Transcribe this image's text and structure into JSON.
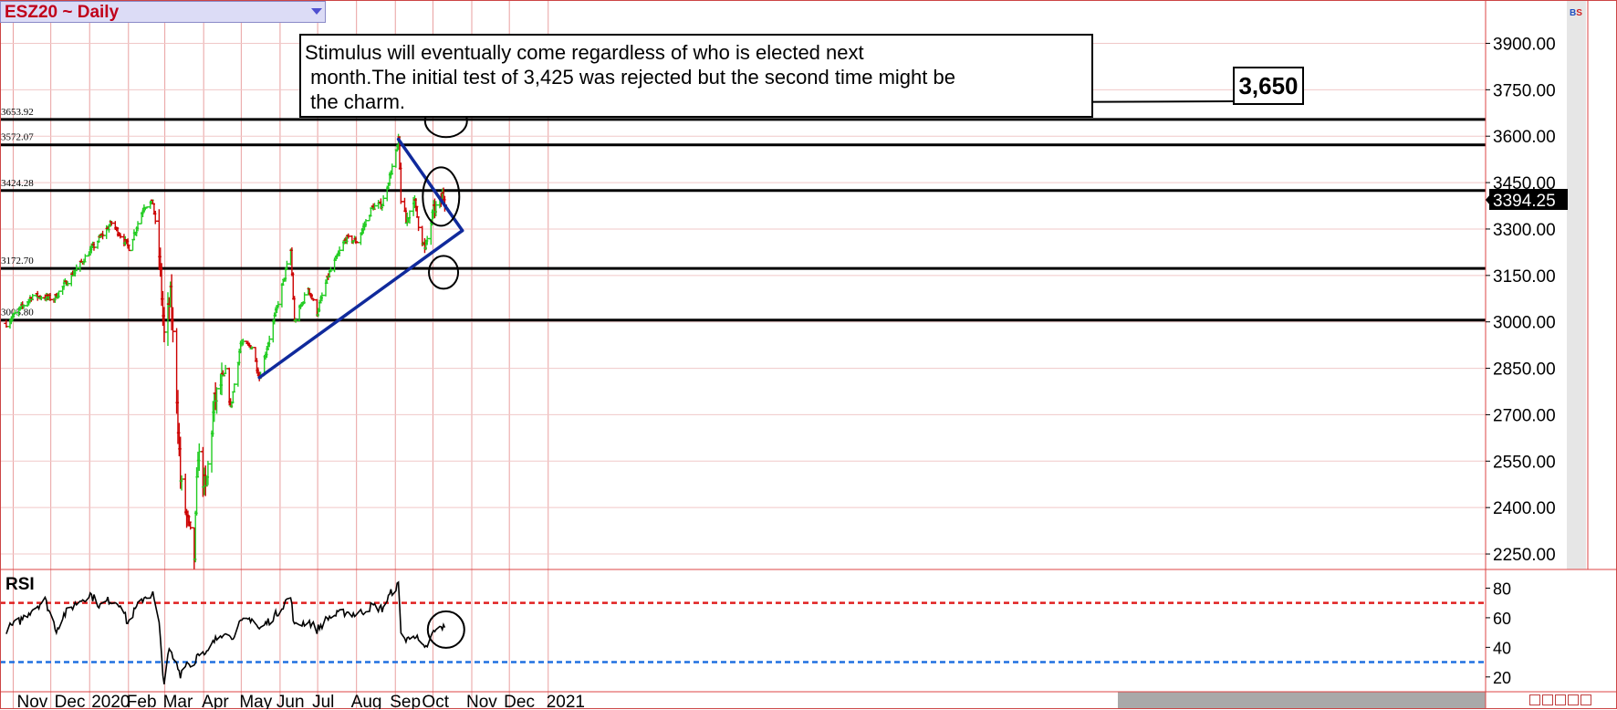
{
  "header": {
    "title": "ESZ20 ~ Daily",
    "price_box": "3394.25"
  },
  "annotations": {
    "note": "Stimulus will eventually come regardless of who is elected next\n month.The initial test of 3,425 was rejected but the second time might be\n the charm.",
    "target": "3,650"
  },
  "rsi_label": "RSI",
  "colors": {
    "up": "#22cc22",
    "down": "#cc0000",
    "trend": "#102a9c",
    "rsi_high": "#e02020",
    "rsi_low": "#2070e0"
  },
  "chart_data": [
    {
      "type": "bar",
      "subtype": "ohlc",
      "x_tick_labels": [
        "Nov",
        "Dec",
        "2020",
        "Feb",
        "Mar",
        "Apr",
        "May",
        "Jun",
        "Jul",
        "Aug",
        "Sep",
        "Oct",
        "Nov",
        "Dec",
        "2021"
      ],
      "y_tick_labels": [
        "3900.00",
        "3750.00",
        "3600.00",
        "3450.00",
        "3300.00",
        "3150.00",
        "3000.00",
        "2850.00",
        "2700.00",
        "2550.00",
        "2400.00",
        "2250.00"
      ],
      "ylim": [
        2200,
        4040
      ],
      "last_price": 3394.25,
      "horizontal_levels": [
        {
          "label": "3653.92",
          "value": 3653.92
        },
        {
          "label": "3572.07",
          "value": 3572.07
        },
        {
          "label": "3424.28",
          "value": 3424.28
        },
        {
          "label": "3172.70",
          "value": 3172.7
        },
        {
          "label": "3005.80",
          "value": 3005.8
        }
      ],
      "trend_lines": [
        {
          "from": [
            "2020-05-14",
            2820
          ],
          "to": [
            "2020-10-23",
            3295
          ]
        },
        {
          "from": [
            "2020-09-02",
            3590
          ],
          "to": [
            "2020-10-23",
            3295
          ]
        }
      ],
      "markers": [
        {
          "at": [
            "2020-10-10",
            3650
          ]
        },
        {
          "at": [
            "2020-10-06",
            3405
          ]
        },
        {
          "at": [
            "2020-10-08",
            3160
          ]
        }
      ],
      "path": [
        [
          "2019-10-25",
          2995
        ],
        [
          "2019-11-15",
          3085
        ],
        [
          "2019-12-02",
          3075
        ],
        [
          "2019-12-31",
          3230
        ],
        [
          "2020-01-17",
          3320
        ],
        [
          "2020-01-31",
          3240
        ],
        [
          "2020-02-12",
          3375
        ],
        [
          "2020-02-19",
          3385
        ],
        [
          "2020-02-24",
          3215
        ],
        [
          "2020-02-28",
          2955
        ],
        [
          "2020-03-04",
          3080
        ],
        [
          "2020-03-09",
          2760
        ],
        [
          "2020-03-12",
          2490
        ],
        [
          "2020-03-16",
          2390
        ],
        [
          "2020-03-23",
          2240
        ],
        [
          "2020-03-26",
          2580
        ],
        [
          "2020-04-01",
          2450
        ],
        [
          "2020-04-08",
          2740
        ],
        [
          "2020-04-17",
          2840
        ],
        [
          "2020-04-21",
          2720
        ],
        [
          "2020-04-29",
          2930
        ],
        [
          "2020-05-08",
          2920
        ],
        [
          "2020-05-14",
          2820
        ],
        [
          "2020-05-27",
          3030
        ],
        [
          "2020-06-08",
          3230
        ],
        [
          "2020-06-11",
          3000
        ],
        [
          "2020-06-22",
          3110
        ],
        [
          "2020-06-29",
          3030
        ],
        [
          "2020-07-08",
          3150
        ],
        [
          "2020-07-22",
          3270
        ],
        [
          "2020-07-31",
          3260
        ],
        [
          "2020-08-12",
          3370
        ],
        [
          "2020-08-20",
          3380
        ],
        [
          "2020-08-28",
          3500
        ],
        [
          "2020-09-02",
          3580
        ],
        [
          "2020-09-04",
          3400
        ],
        [
          "2020-09-08",
          3320
        ],
        [
          "2020-09-14",
          3400
        ],
        [
          "2020-09-18",
          3320
        ],
        [
          "2020-09-23",
          3230
        ],
        [
          "2020-09-30",
          3360
        ],
        [
          "2020-10-06",
          3390
        ],
        [
          "2020-10-07",
          3410
        ],
        [
          "2020-10-09",
          3394
        ]
      ]
    },
    {
      "type": "line",
      "name": "RSI",
      "y_tick_labels": [
        "80",
        "60",
        "40",
        "20"
      ],
      "ylim": [
        10,
        92
      ],
      "overbought": 70,
      "oversold": 30,
      "marker": {
        "at": [
          "2020-10-10",
          52
        ]
      },
      "path": [
        [
          "2019-10-25",
          52
        ],
        [
          "2019-11-05",
          58
        ],
        [
          "2019-11-15",
          66
        ],
        [
          "2019-11-25",
          72
        ],
        [
          "2019-12-04",
          52
        ],
        [
          "2019-12-10",
          62
        ],
        [
          "2019-12-20",
          70
        ],
        [
          "2019-12-31",
          76
        ],
        [
          "2020-01-08",
          68
        ],
        [
          "2020-01-15",
          72
        ],
        [
          "2020-01-24",
          70
        ],
        [
          "2020-01-30",
          56
        ],
        [
          "2020-02-04",
          64
        ],
        [
          "2020-02-12",
          74
        ],
        [
          "2020-02-19",
          76
        ],
        [
          "2020-02-24",
          55
        ],
        [
          "2020-02-27",
          24
        ],
        [
          "2020-02-28",
          16
        ],
        [
          "2020-03-03",
          38
        ],
        [
          "2020-03-09",
          28
        ],
        [
          "2020-03-12",
          22
        ],
        [
          "2020-03-16",
          30
        ],
        [
          "2020-03-23",
          28
        ],
        [
          "2020-03-26",
          38
        ],
        [
          "2020-04-01",
          34
        ],
        [
          "2020-04-08",
          44
        ],
        [
          "2020-04-17",
          52
        ],
        [
          "2020-04-21",
          46
        ],
        [
          "2020-04-29",
          56
        ],
        [
          "2020-05-08",
          60
        ],
        [
          "2020-05-14",
          52
        ],
        [
          "2020-05-27",
          62
        ],
        [
          "2020-06-05",
          72
        ],
        [
          "2020-06-08",
          74
        ],
        [
          "2020-06-11",
          54
        ],
        [
          "2020-06-22",
          58
        ],
        [
          "2020-06-29",
          52
        ],
        [
          "2020-07-08",
          60
        ],
        [
          "2020-07-22",
          64
        ],
        [
          "2020-07-31",
          62
        ],
        [
          "2020-08-12",
          68
        ],
        [
          "2020-08-20",
          66
        ],
        [
          "2020-08-28",
          78
        ],
        [
          "2020-09-02",
          82
        ],
        [
          "2020-09-04",
          52
        ],
        [
          "2020-09-08",
          44
        ],
        [
          "2020-09-14",
          50
        ],
        [
          "2020-09-18",
          44
        ],
        [
          "2020-09-23",
          38
        ],
        [
          "2020-09-30",
          50
        ],
        [
          "2020-10-07",
          54
        ],
        [
          "2020-10-09",
          52
        ]
      ]
    }
  ]
}
